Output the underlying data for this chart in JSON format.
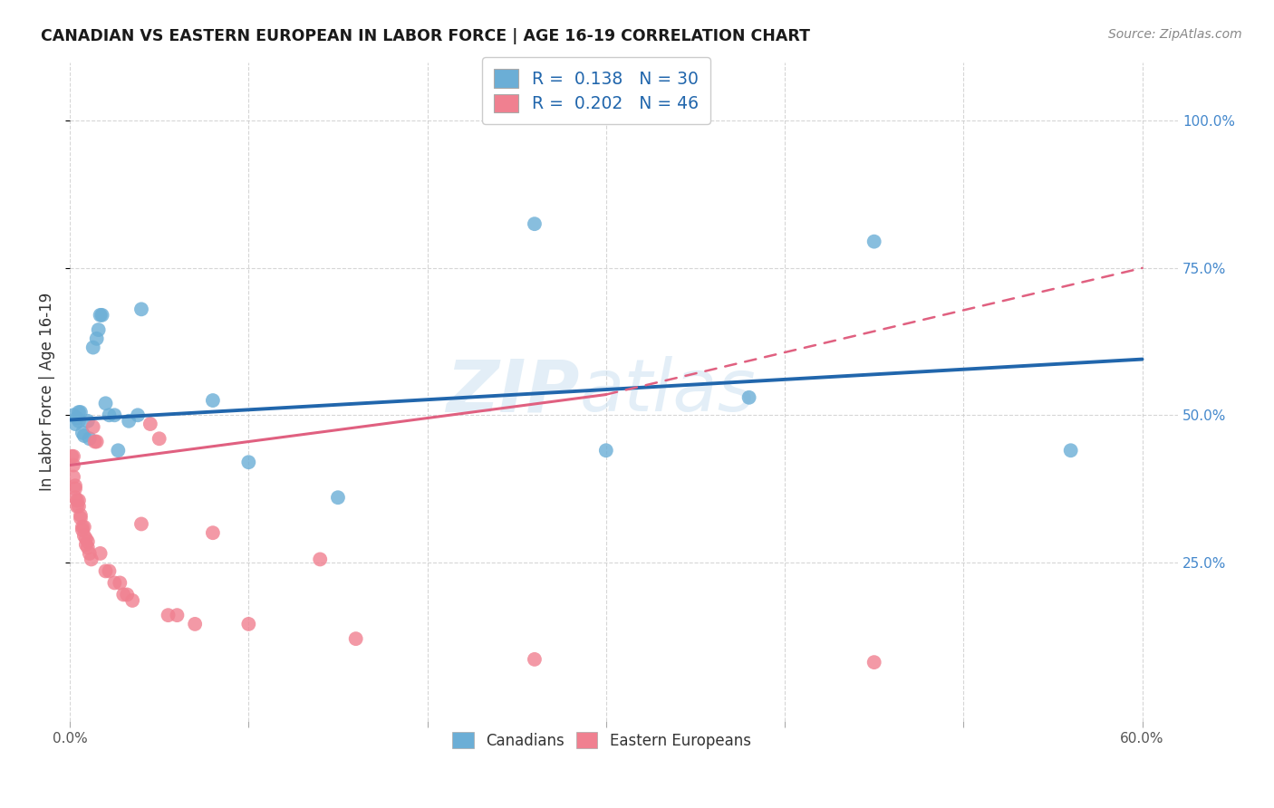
{
  "title": "CANADIAN VS EASTERN EUROPEAN IN LABOR FORCE | AGE 16-19 CORRELATION CHART",
  "source": "Source: ZipAtlas.com",
  "ylabel": "In Labor Force | Age 16-19",
  "xlim": [
    0.0,
    0.62
  ],
  "ylim": [
    -0.02,
    1.1
  ],
  "ytick_positions": [
    0.25,
    0.5,
    0.75,
    1.0
  ],
  "ytick_labels": [
    "25.0%",
    "50.0%",
    "75.0%",
    "100.0%"
  ],
  "xtick_positions": [
    0.0,
    0.1,
    0.2,
    0.3,
    0.4,
    0.5,
    0.6
  ],
  "xtick_labels_show": {
    "0": "0.0%",
    "6": "60.0%"
  },
  "canadian_color": "#6baed6",
  "eastern_color": "#f08090",
  "blue_line_color": "#2166ac",
  "pink_line_color": "#e06080",
  "canadian_R": 0.138,
  "canadian_N": 30,
  "eastern_R": 0.202,
  "eastern_N": 46,
  "watermark": "ZIPatlas",
  "blue_line": [
    0.0,
    0.492,
    0.6,
    0.595
  ],
  "pink_line_solid": [
    0.0,
    0.415,
    0.3,
    0.535
  ],
  "pink_line_dash": [
    0.3,
    0.535,
    0.6,
    0.75
  ],
  "canadian_points": [
    [
      0.002,
      0.5
    ],
    [
      0.003,
      0.485
    ],
    [
      0.004,
      0.495
    ],
    [
      0.005,
      0.49
    ],
    [
      0.005,
      0.505
    ],
    [
      0.006,
      0.505
    ],
    [
      0.007,
      0.47
    ],
    [
      0.008,
      0.465
    ],
    [
      0.01,
      0.49
    ],
    [
      0.011,
      0.46
    ],
    [
      0.013,
      0.615
    ],
    [
      0.015,
      0.63
    ],
    [
      0.016,
      0.645
    ],
    [
      0.017,
      0.67
    ],
    [
      0.018,
      0.67
    ],
    [
      0.02,
      0.52
    ],
    [
      0.022,
      0.5
    ],
    [
      0.025,
      0.5
    ],
    [
      0.027,
      0.44
    ],
    [
      0.033,
      0.49
    ],
    [
      0.038,
      0.5
    ],
    [
      0.04,
      0.68
    ],
    [
      0.08,
      0.525
    ],
    [
      0.1,
      0.42
    ],
    [
      0.15,
      0.36
    ],
    [
      0.26,
      0.825
    ],
    [
      0.3,
      0.44
    ],
    [
      0.38,
      0.53
    ],
    [
      0.45,
      0.795
    ],
    [
      0.56,
      0.44
    ]
  ],
  "eastern_points": [
    [
      0.001,
      0.43
    ],
    [
      0.002,
      0.43
    ],
    [
      0.002,
      0.415
    ],
    [
      0.002,
      0.395
    ],
    [
      0.003,
      0.38
    ],
    [
      0.003,
      0.375
    ],
    [
      0.003,
      0.36
    ],
    [
      0.004,
      0.355
    ],
    [
      0.004,
      0.345
    ],
    [
      0.005,
      0.355
    ],
    [
      0.005,
      0.345
    ],
    [
      0.006,
      0.33
    ],
    [
      0.006,
      0.325
    ],
    [
      0.007,
      0.31
    ],
    [
      0.007,
      0.305
    ],
    [
      0.008,
      0.295
    ],
    [
      0.008,
      0.31
    ],
    [
      0.009,
      0.29
    ],
    [
      0.009,
      0.28
    ],
    [
      0.01,
      0.285
    ],
    [
      0.01,
      0.275
    ],
    [
      0.011,
      0.265
    ],
    [
      0.012,
      0.255
    ],
    [
      0.013,
      0.48
    ],
    [
      0.014,
      0.455
    ],
    [
      0.015,
      0.455
    ],
    [
      0.017,
      0.265
    ],
    [
      0.02,
      0.235
    ],
    [
      0.022,
      0.235
    ],
    [
      0.025,
      0.215
    ],
    [
      0.028,
      0.215
    ],
    [
      0.03,
      0.195
    ],
    [
      0.032,
      0.195
    ],
    [
      0.035,
      0.185
    ],
    [
      0.04,
      0.315
    ],
    [
      0.045,
      0.485
    ],
    [
      0.05,
      0.46
    ],
    [
      0.055,
      0.16
    ],
    [
      0.06,
      0.16
    ],
    [
      0.07,
      0.145
    ],
    [
      0.08,
      0.3
    ],
    [
      0.1,
      0.145
    ],
    [
      0.14,
      0.255
    ],
    [
      0.16,
      0.12
    ],
    [
      0.26,
      0.085
    ],
    [
      0.45,
      0.08
    ]
  ]
}
